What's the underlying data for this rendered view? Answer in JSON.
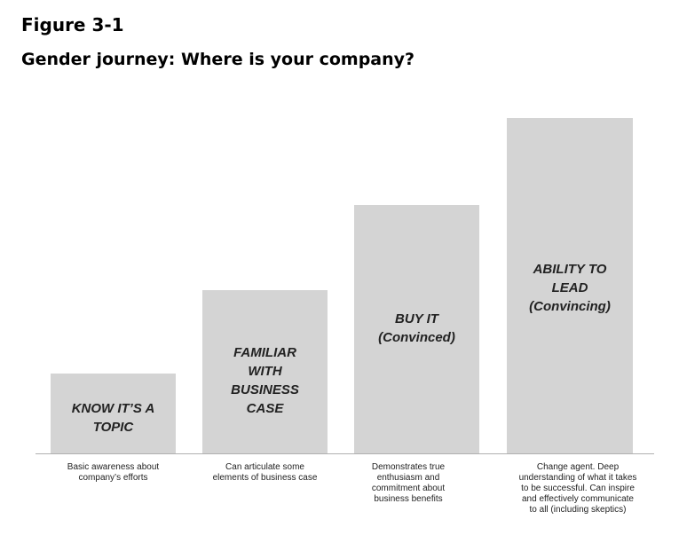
{
  "figure": {
    "label": "Figure 3-1",
    "title": "Gender journey: Where is your company?"
  },
  "steps": [
    {
      "label_lines": [
        "KNOW IT’S A",
        "TOPIC"
      ],
      "description_lines": [
        "Basic awareness about",
        "company’s efforts"
      ]
    },
    {
      "label_lines": [
        "FAMILIAR",
        "WITH",
        "BUSINESS",
        "CASE"
      ],
      "description_lines": [
        "Can articulate some",
        "elements of business case"
      ]
    },
    {
      "label_lines": [
        "BUY IT",
        "(Convinced)"
      ],
      "description_lines": [
        "Demonstrates true",
        "enthusiasm and",
        "commitment  about",
        "business benefits"
      ]
    },
    {
      "label_lines": [
        "ABILITY TO",
        "LEAD",
        "(Convincing)"
      ],
      "description_lines": [
        "Change agent. Deep",
        "understanding of what it takes",
        "to be successful. Can inspire",
        "and effectively communicate",
        "to all (including skeptics)"
      ]
    }
  ],
  "colors": {
    "bar_fill": "#d4d4d4",
    "label_text": "#222222"
  }
}
